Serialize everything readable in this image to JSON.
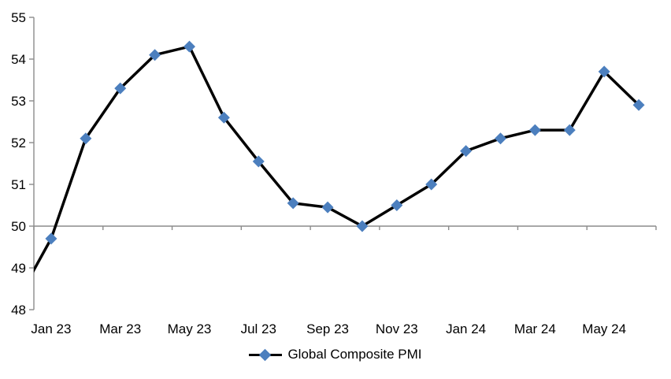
{
  "chart_data": {
    "type": "line",
    "title": "",
    "legend": {
      "label": "Global Composite PMI",
      "position": "bottom-center"
    },
    "x": [
      "Dec 22",
      "Jan 23",
      "Feb 23",
      "Mar 23",
      "Apr 23",
      "May 23",
      "Jun 23",
      "Jul 23",
      "Aug 23",
      "Sep 23",
      "Oct 23",
      "Nov 23",
      "Dec 23",
      "Jan 24",
      "Feb 24",
      "Mar 24",
      "Apr 24",
      "May 24",
      "Jun 24"
    ],
    "series": [
      {
        "name": "Global Composite PMI",
        "values": [
          48.2,
          49.7,
          52.1,
          53.3,
          54.1,
          54.3,
          52.6,
          51.55,
          50.55,
          50.45,
          50.0,
          50.5,
          51.0,
          51.8,
          52.1,
          52.3,
          52.3,
          53.7,
          52.9
        ]
      }
    ],
    "first_point_clipped_at_axis": true,
    "x_tick_labels": [
      "Jan 23",
      "Mar 23",
      "May 23",
      "Jul 23",
      "Sep 23",
      "Nov 23",
      "Jan 24",
      "Mar 24",
      "May 24"
    ],
    "x_label_interval": 2,
    "y_ticks": [
      55,
      54,
      53,
      52,
      51,
      50,
      49,
      48
    ],
    "ylim": [
      48,
      55
    ],
    "reference_line_value": 50,
    "grid": "off",
    "colors": {
      "line": "#000000",
      "marker": "#4C7FBE",
      "axis": "#8C8C8C",
      "text": "#000000",
      "background": "#FFFFFF"
    }
  }
}
